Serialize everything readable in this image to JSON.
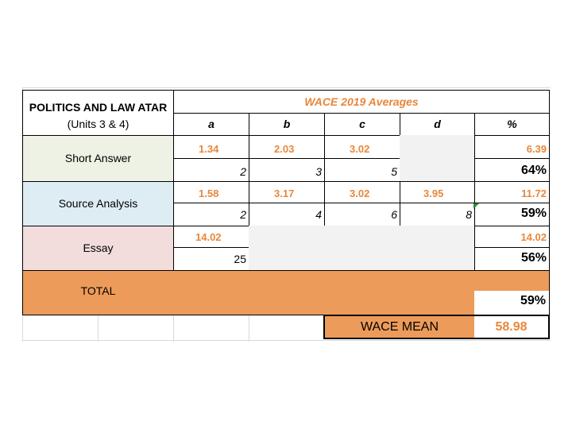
{
  "header": {
    "title": "POLITICS AND LAW ATAR",
    "subtitle": "(Units 3 & 4)",
    "averages_title": "WACE 2019 Averages",
    "columns": [
      "a",
      "b",
      "c",
      "d",
      "%"
    ]
  },
  "rows": {
    "short_answer": {
      "label": "Short Answer",
      "avg": [
        "1.34",
        "2.03",
        "3.02",
        "",
        "6.39"
      ],
      "marks": [
        "2",
        "3",
        "5",
        ""
      ],
      "percent": "64%"
    },
    "source_analysis": {
      "label": "Source Analysis",
      "avg": [
        "1.58",
        "3.17",
        "3.02",
        "3.95",
        "11.72"
      ],
      "marks": [
        "2",
        "4",
        "6",
        "8"
      ],
      "percent": "59%"
    },
    "essay": {
      "label": "Essay",
      "avg": [
        "14.02",
        "",
        "",
        "",
        "14.02"
      ],
      "marks": [
        "25",
        "",
        "",
        ""
      ],
      "percent": "56%"
    },
    "total": {
      "label": "TOTAL",
      "percent": "59%"
    }
  },
  "wace_mean": {
    "label": "WACE MEAN",
    "value": "58.98"
  },
  "colors": {
    "orange": "#e8873a",
    "total_fill": "#ed9b5a",
    "green": "#eef2e4",
    "blue": "#deedf4",
    "pink": "#f2dcdc",
    "grey": "#f2f2f2"
  }
}
